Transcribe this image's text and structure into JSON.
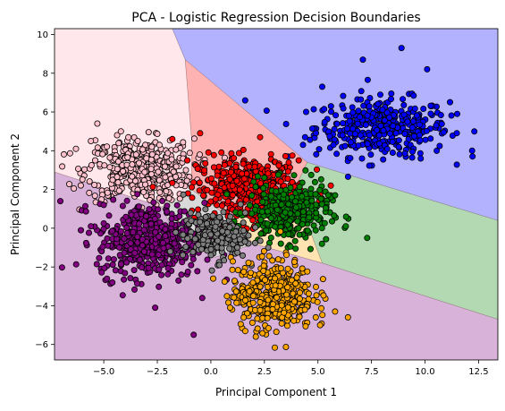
{
  "chart_data": {
    "type": "scatter",
    "title": "PCA - Logistic Regression Decision Boundaries",
    "xlabel": "Principal Component 1",
    "ylabel": "Principal Component 2",
    "xlim": [
      -7.3,
      13.4
    ],
    "ylim": [
      -6.8,
      10.3
    ],
    "xticks": [
      -5.0,
      -2.5,
      0.0,
      2.5,
      5.0,
      7.5,
      10.0,
      12.5
    ],
    "xtick_labels": [
      "−5.0",
      "−2.5",
      "0.0",
      "2.5",
      "5.0",
      "7.5",
      "10.0",
      "12.5"
    ],
    "yticks": [
      -6,
      -4,
      -2,
      0,
      2,
      4,
      6,
      8,
      10
    ],
    "ytick_labels": [
      "−6",
      "−4",
      "−2",
      "0",
      "2",
      "4",
      "6",
      "8",
      "10"
    ],
    "grid": false,
    "legend": "none",
    "point_edge_color": "#000000",
    "regions": [
      {
        "class": "pink",
        "color": "#ffb6c1",
        "opacity": 0.33,
        "polygon": [
          [
            -7.3,
            10.3
          ],
          [
            -1.8,
            10.3
          ],
          [
            -1.2,
            8.7
          ],
          [
            -0.9,
            4.6
          ],
          [
            -0.9,
            2.0
          ],
          [
            -2.3,
            1.1
          ],
          [
            -7.3,
            2.9
          ]
        ]
      },
      {
        "class": "blue",
        "color": "#0000ff",
        "opacity": 0.3,
        "polygon": [
          [
            -1.8,
            10.3
          ],
          [
            13.4,
            10.3
          ],
          [
            13.4,
            0.4
          ],
          [
            4.5,
            3.4
          ],
          [
            -1.2,
            8.7
          ]
        ]
      },
      {
        "class": "red",
        "color": "#ff0000",
        "opacity": 0.3,
        "polygon": [
          [
            -1.2,
            8.7
          ],
          [
            4.5,
            3.4
          ],
          [
            3.9,
            2.0
          ],
          [
            0.8,
            0.6
          ],
          [
            -0.9,
            2.0
          ],
          [
            -0.9,
            4.6
          ]
        ]
      },
      {
        "class": "green",
        "color": "#008000",
        "opacity": 0.3,
        "polygon": [
          [
            4.5,
            3.4
          ],
          [
            13.4,
            0.4
          ],
          [
            13.4,
            -4.7
          ],
          [
            5.2,
            -1.8
          ],
          [
            3.9,
            2.0
          ]
        ]
      },
      {
        "class": "gray",
        "color": "#808080",
        "opacity": 0.3,
        "polygon": [
          [
            -0.9,
            2.0
          ],
          [
            0.8,
            0.6
          ],
          [
            2.0,
            -0.8
          ],
          [
            0.2,
            -1.5
          ],
          [
            -1.6,
            -0.5
          ],
          [
            -2.3,
            1.1
          ]
        ]
      },
      {
        "class": "orange",
        "color": "#ffa500",
        "opacity": 0.3,
        "polygon": [
          [
            2.0,
            -0.8
          ],
          [
            5.2,
            -1.8
          ],
          [
            3.9,
            2.0
          ],
          [
            0.8,
            0.6
          ]
        ]
      },
      {
        "class": "purple",
        "color": "#800080",
        "opacity": 0.3,
        "polygon": [
          [
            -7.3,
            2.9
          ],
          [
            -2.3,
            1.1
          ],
          [
            -1.6,
            -0.5
          ],
          [
            0.2,
            -1.5
          ],
          [
            2.0,
            -0.8
          ],
          [
            5.2,
            -1.8
          ],
          [
            13.4,
            -4.7
          ],
          [
            13.4,
            -6.8
          ],
          [
            -7.3,
            -6.8
          ]
        ]
      }
    ],
    "series": [
      {
        "class": "blue",
        "color": "#0000ff",
        "center": [
          8.0,
          5.2
        ],
        "spread": [
          1.55,
          0.75
        ],
        "count": 380,
        "points": [
          [
            1.6,
            6.6
          ],
          [
            3.6,
            3.7
          ],
          [
            4.4,
            4.7
          ],
          [
            5.2,
            7.3
          ],
          [
            7.1,
            8.7
          ],
          [
            8.9,
            9.3
          ],
          [
            10.1,
            8.2
          ],
          [
            12.2,
            4.0
          ],
          [
            11.5,
            5.9
          ],
          [
            9.8,
            3.6
          ],
          [
            4.3,
            4.3
          ]
        ]
      },
      {
        "class": "pink",
        "color": "#ffc0cb",
        "center": [
          -3.3,
          3.0
        ],
        "spread": [
          1.25,
          0.8
        ],
        "count": 420,
        "points": [
          [
            -6.3,
            4.1
          ],
          [
            -5.6,
            4.5
          ],
          [
            -5.3,
            5.4
          ],
          [
            -4.2,
            5.0
          ],
          [
            -2.4,
            4.3
          ],
          [
            -1.3,
            3.6
          ],
          [
            -5.4,
            3.5
          ]
        ]
      },
      {
        "class": "red",
        "color": "#ff0000",
        "center": [
          1.8,
          2.0
        ],
        "spread": [
          1.2,
          0.85
        ],
        "count": 420,
        "points": [
          [
            -1.8,
            4.6
          ],
          [
            -0.5,
            4.9
          ],
          [
            2.3,
            4.7
          ],
          [
            4.1,
            3.5
          ],
          [
            5.6,
            2.2
          ],
          [
            -1.1,
            3.5
          ]
        ]
      },
      {
        "class": "green",
        "color": "#008000",
        "center": [
          3.6,
          0.8
        ],
        "spread": [
          0.95,
          0.75
        ],
        "count": 320,
        "points": [
          [
            7.3,
            -0.5
          ],
          [
            5.8,
            1.7
          ],
          [
            6.3,
            0.1
          ],
          [
            2.0,
            2.4
          ]
        ]
      },
      {
        "class": "purple",
        "color": "#800080",
        "center": [
          -2.8,
          -0.6
        ],
        "spread": [
          1.25,
          0.95
        ],
        "count": 460,
        "points": [
          [
            -5.6,
            0.1
          ],
          [
            -4.6,
            -2.8
          ],
          [
            -2.6,
            -4.1
          ],
          [
            -0.8,
            -5.5
          ],
          [
            -5.0,
            1.2
          ],
          [
            -0.4,
            -3.6
          ]
        ]
      },
      {
        "class": "gray",
        "color": "#808080",
        "center": [
          0.2,
          -0.4
        ],
        "spread": [
          0.75,
          0.6
        ],
        "count": 200,
        "points": [
          [
            -1.9,
            -1.2
          ],
          [
            1.6,
            0.8
          ],
          [
            0.4,
            -1.9
          ]
        ]
      },
      {
        "class": "orange",
        "color": "#ffa500",
        "center": [
          2.9,
          -3.4
        ],
        "spread": [
          0.95,
          0.9
        ],
        "count": 400,
        "points": [
          [
            5.8,
            -4.3
          ],
          [
            6.4,
            -4.6
          ],
          [
            5.1,
            -5.0
          ],
          [
            2.1,
            -5.6
          ],
          [
            4.9,
            -4.6
          ],
          [
            0.9,
            -4.1
          ]
        ]
      }
    ]
  }
}
